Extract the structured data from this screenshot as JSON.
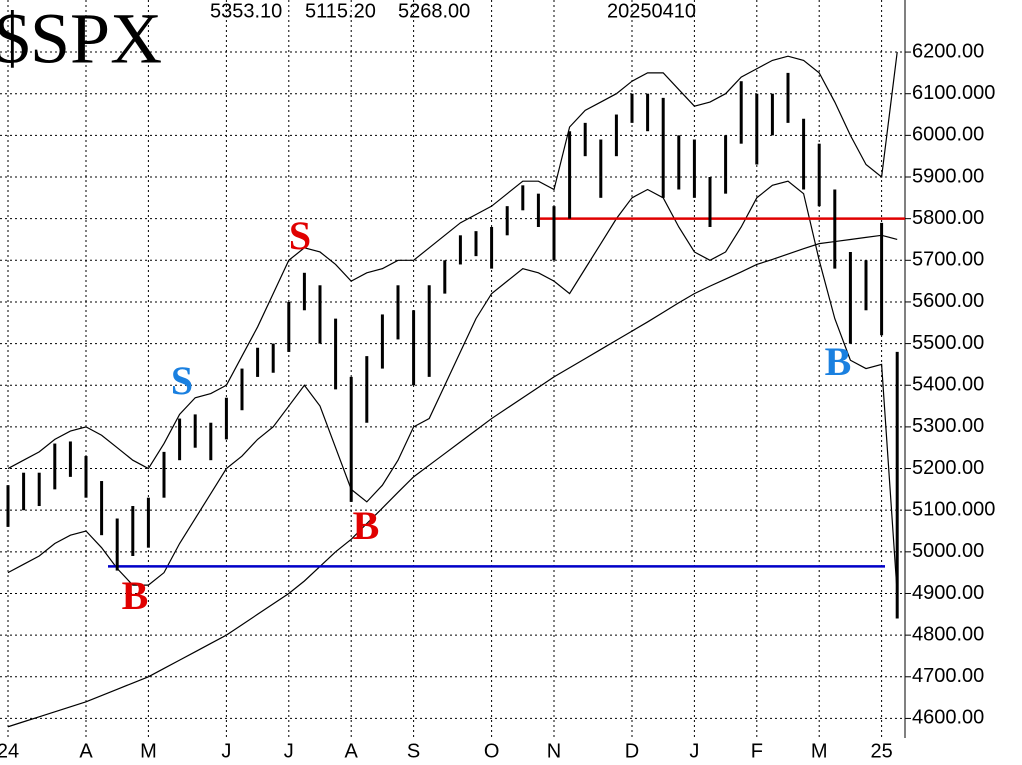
{
  "chart_data": {
    "type": "ohlc",
    "title": "$SPX",
    "header_values": [
      "5353.10",
      "5115.20",
      "5268.00"
    ],
    "date": "20250410",
    "categories": [
      "24",
      null,
      null,
      null,
      null,
      "A",
      null,
      null,
      null,
      "M",
      null,
      null,
      null,
      null,
      "J",
      null,
      null,
      null,
      "J",
      null,
      null,
      null,
      "A",
      null,
      null,
      null,
      "S",
      null,
      null,
      null,
      null,
      "O",
      null,
      null,
      null,
      "N",
      null,
      null,
      null,
      null,
      "D",
      null,
      null,
      null,
      "J",
      null,
      null,
      null,
      "F",
      null,
      null,
      null,
      "M",
      null,
      null,
      null,
      "25",
      null
    ],
    "high": [
      5160,
      5190,
      5190,
      5260,
      5265,
      5230,
      5170,
      5080,
      5110,
      5130,
      5240,
      5320,
      5330,
      5310,
      5370,
      5440,
      5490,
      5500,
      5600,
      5670,
      5640,
      5560,
      5420,
      5470,
      5570,
      5640,
      5580,
      5640,
      5700,
      5760,
      5770,
      5780,
      5830,
      5880,
      5860,
      5830,
      6010,
      6030,
      5990,
      6050,
      6100,
      6100,
      6090,
      6000,
      5990,
      5900,
      6000,
      6130,
      6100,
      6100,
      6150,
      6040,
      5980,
      5870,
      5720,
      5700,
      5790,
      5480
    ],
    "low": [
      5060,
      5100,
      5110,
      5150,
      5180,
      5130,
      5040,
      4955,
      4990,
      5010,
      5130,
      5220,
      5250,
      5220,
      5270,
      5340,
      5420,
      5430,
      5480,
      5580,
      5500,
      5390,
      5120,
      5310,
      5440,
      5510,
      5400,
      5420,
      5620,
      5690,
      5710,
      5680,
      5760,
      5820,
      5780,
      5700,
      5800,
      5950,
      5850,
      5950,
      6030,
      6010,
      5850,
      5870,
      5850,
      5780,
      5860,
      5980,
      5930,
      6000,
      6030,
      5870,
      5830,
      5680,
      5500,
      5580,
      5520,
      4840
    ],
    "lines": [
      {
        "color": "#000000",
        "values": [
          4580,
          4592,
          4604,
          4616,
          4628,
          4640,
          4655,
          4670,
          4685,
          4700,
          4720,
          4740,
          4760,
          4780,
          4800,
          4825,
          4850,
          4875,
          4900,
          4930,
          4965,
          5000,
          5030,
          5068,
          5105,
          5143,
          5180,
          5208,
          5236,
          5264,
          5292,
          5320,
          5345,
          5370,
          5395,
          5420,
          5442,
          5464,
          5486,
          5508,
          5530,
          5552,
          5575,
          5598,
          5620,
          5638,
          5655,
          5672,
          5690,
          5702,
          5715,
          5728,
          5740,
          5745,
          5750,
          5755,
          5760,
          5750
        ]
      },
      {
        "color": "#000000",
        "values": [
          5200,
          5220,
          5240,
          5270,
          5290,
          5300,
          5280,
          5250,
          5220,
          5200,
          5260,
          5330,
          5370,
          5380,
          5400,
          5470,
          5540,
          5620,
          5700,
          5730,
          5720,
          5690,
          5650,
          5670,
          5680,
          5700,
          5700,
          5730,
          5760,
          5790,
          5810,
          5830,
          5860,
          5890,
          5890,
          5870,
          6020,
          6060,
          6080,
          6100,
          6130,
          6150,
          6150,
          6110,
          6070,
          6080,
          6100,
          6140,
          6160,
          6180,
          6190,
          6180,
          6150,
          6080,
          6000,
          5930,
          5900,
          6200
        ]
      },
      {
        "color": "#000000",
        "values": [
          4950,
          4970,
          4990,
          5020,
          5040,
          5050,
          5010,
          4960,
          4920,
          4920,
          4950,
          5020,
          5080,
          5140,
          5200,
          5230,
          5270,
          5300,
          5350,
          5400,
          5350,
          5250,
          5150,
          5120,
          5160,
          5220,
          5300,
          5320,
          5400,
          5480,
          5560,
          5620,
          5650,
          5680,
          5670,
          5650,
          5620,
          5680,
          5740,
          5800,
          5850,
          5870,
          5850,
          5780,
          5720,
          5700,
          5720,
          5780,
          5850,
          5880,
          5890,
          5860,
          5700,
          5560,
          5460,
          5440,
          5450,
          4900
        ]
      }
    ],
    "hlines": [
      {
        "value": 5800,
        "color": "#e00000"
      },
      {
        "value": 4965,
        "color": "#0000c8"
      }
    ],
    "annotations": [
      {
        "text": "S",
        "color": "#e00000"
      },
      {
        "text": "S",
        "color": "#1a80e0"
      },
      {
        "text": "B",
        "color": "#e00000"
      },
      {
        "text": "B",
        "color": "#e00000"
      },
      {
        "text": "B",
        "color": "#1a80e0"
      }
    ],
    "ylim": [
      4553,
      6325
    ],
    "yticks": [
      {
        "value": 4600,
        "label": "4600.00"
      },
      {
        "value": 4700,
        "label": "4700.00"
      },
      {
        "value": 4800,
        "label": "4800.00"
      },
      {
        "value": 4900,
        "label": "4900.00"
      },
      {
        "value": 5000,
        "label": "5000.00"
      },
      {
        "value": 5100,
        "label": "5100.000"
      },
      {
        "value": 5200,
        "label": "5200.00"
      },
      {
        "value": 5300,
        "label": "5300.00"
      },
      {
        "value": 5400,
        "label": "5400.00"
      },
      {
        "value": 5500,
        "label": "5500.00"
      },
      {
        "value": 5600,
        "label": "5600.00"
      },
      {
        "value": 5700,
        "label": "5700.00"
      },
      {
        "value": 5800,
        "label": "5800.00"
      },
      {
        "value": 5900,
        "label": "5900.00"
      },
      {
        "value": 6000,
        "label": "6000.00"
      },
      {
        "value": 6100,
        "label": "6100.000"
      },
      {
        "value": 6200,
        "label": "6200.00"
      }
    ],
    "grid": true
  }
}
